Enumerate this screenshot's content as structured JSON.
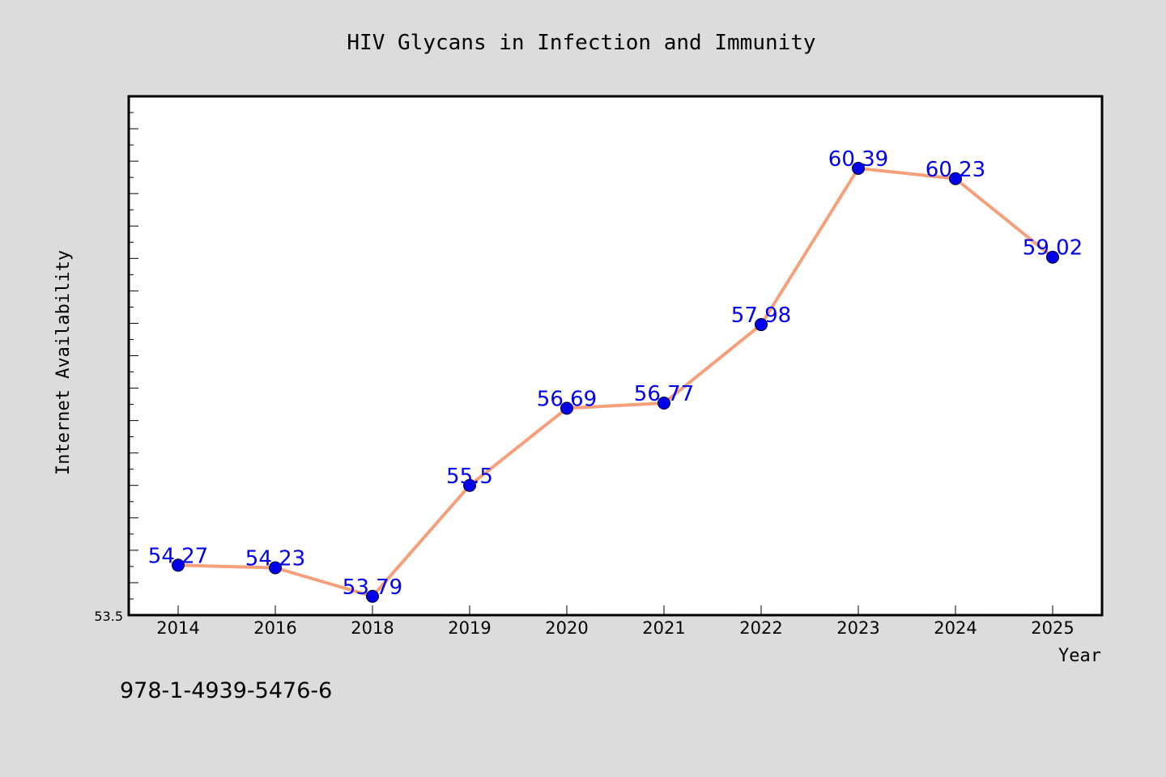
{
  "chart_data": {
    "type": "line",
    "title": "HIV Glycans in Infection and Immunity",
    "xlabel": "Year",
    "ylabel": "Internet Availability",
    "categories": [
      "2014",
      "2016",
      "2018",
      "2019",
      "2020",
      "2021",
      "2022",
      "2023",
      "2024",
      "2025"
    ],
    "series": [
      {
        "values": [
          54.27,
          54.23,
          53.79,
          55.5,
          56.69,
          56.77,
          57.98,
          60.39,
          60.23,
          59.02
        ],
        "labels": [
          "54.27",
          "54.23",
          "53.79",
          "55.5",
          "56.69",
          "56.77",
          "57.98",
          "60.39",
          "60.23",
          "59.02"
        ],
        "line_color": "#f5a07a",
        "marker_color": "#0000ee",
        "label_color": "#0000ee"
      }
    ],
    "ylim": [
      53.5,
      61.5
    ],
    "y_tick_labels": [
      "53.5"
    ],
    "grid": false,
    "legend": "none"
  },
  "footer": {
    "isbn": "978-1-4939-5476-6"
  },
  "colors": {
    "background": "#dcdcdc",
    "plot_background": "#ffffff",
    "axis": "#000000"
  }
}
